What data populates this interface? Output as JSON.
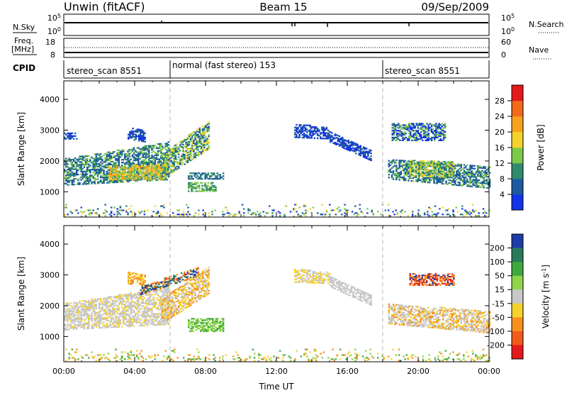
{
  "header": {
    "title_left": "Unwin (fitACF)",
    "title_center": "Beam 15",
    "title_right": "09/Sep/2009"
  },
  "nsky_panel": {
    "label": "N.Sky",
    "right_label": "N.Search",
    "ticks_left": [
      "10^5",
      "10^0"
    ],
    "ticks_right": [
      "10^5",
      "10^0"
    ]
  },
  "freq_panel": {
    "label_line1": "Freq.",
    "label_line2": "[MHz]",
    "ticks_left": [
      "18",
      "8"
    ],
    "ticks_right": [
      "60",
      "0"
    ],
    "right_label": "Nave"
  },
  "cpid": {
    "label": "CPID",
    "segments": [
      {
        "label": "stereo_scan 8551",
        "start_hour": 0
      },
      {
        "label": "normal (fast stereo) 153",
        "start_hour": 6
      },
      {
        "label": "stereo_scan 8551",
        "start_hour": 18
      }
    ]
  },
  "chart_data": [
    {
      "type": "heatmap",
      "name": "power",
      "ylabel": "Slant Range [km]",
      "ylim": [
        180,
        4600
      ],
      "yticks": [
        1000,
        2000,
        3000,
        4000
      ],
      "xlim": [
        0,
        24
      ],
      "colorbar": {
        "label": "Power [dB]",
        "ticks": [
          "4",
          "8",
          "12",
          "16",
          "20",
          "24",
          "28"
        ],
        "colors": [
          "#1432e6",
          "#1e5aa0",
          "#2f8a6e",
          "#7cc84a",
          "#f5d22d",
          "#f7a21e",
          "#f06a1c",
          "#e31a1c"
        ]
      },
      "regions": [
        {
          "t0": 0.0,
          "t1": 5.9,
          "r0_start": 1200,
          "r1_start": 2050,
          "r0_end": 1380,
          "r1_end": 2600,
          "levels": [
            1,
            1,
            2,
            3
          ]
        },
        {
          "t0": 0.0,
          "t1": 0.7,
          "r0_start": 2700,
          "r1_start": 2900,
          "r0_end": 2700,
          "r1_end": 2900,
          "levels": [
            0,
            1
          ]
        },
        {
          "t0": 3.6,
          "t1": 4.6,
          "r0_start": 2700,
          "r1_start": 3100,
          "r0_end": 2600,
          "r1_end": 3000,
          "levels": [
            0,
            1
          ]
        },
        {
          "t0": 2.5,
          "t1": 5.8,
          "r0_start": 1380,
          "r1_start": 1800,
          "r0_end": 1400,
          "r1_end": 1900,
          "levels": [
            3,
            4,
            5
          ]
        },
        {
          "t0": 5.5,
          "t1": 8.2,
          "r0_start": 1400,
          "r1_start": 2200,
          "r0_end": 2400,
          "r1_end": 3300,
          "levels": [
            1,
            2,
            3,
            4
          ]
        },
        {
          "t0": 7.0,
          "t1": 9.0,
          "r0_start": 1400,
          "r1_start": 1620,
          "r0_end": 1400,
          "r1_end": 1620,
          "levels": [
            1,
            2
          ]
        },
        {
          "t0": 7.0,
          "t1": 8.6,
          "r0_start": 1000,
          "r1_start": 1300,
          "r0_end": 1000,
          "r1_end": 1300,
          "levels": [
            2,
            3
          ]
        },
        {
          "t0": 13.0,
          "t1": 15.0,
          "r0_start": 2750,
          "r1_start": 3200,
          "r0_end": 2700,
          "r1_end": 3050,
          "levels": [
            0,
            1
          ]
        },
        {
          "t0": 15.0,
          "t1": 17.3,
          "r0_start": 2600,
          "r1_start": 2950,
          "r0_end": 2000,
          "r1_end": 2350,
          "levels": [
            0,
            1
          ]
        },
        {
          "t0": 18.3,
          "t1": 24.0,
          "r0_start": 1400,
          "r1_start": 2050,
          "r0_end": 1100,
          "r1_end": 1800,
          "levels": [
            1,
            1,
            2,
            3
          ]
        },
        {
          "t0": 19.5,
          "t1": 22.0,
          "r0_start": 1500,
          "r1_start": 2000,
          "r0_end": 1450,
          "r1_end": 1950,
          "levels": [
            2,
            3,
            4
          ]
        },
        {
          "t0": 18.5,
          "t1": 21.5,
          "r0_start": 2650,
          "r1_start": 3200,
          "r0_end": 2650,
          "r1_end": 3200,
          "levels": [
            0,
            1,
            3
          ]
        },
        {
          "t0": 0.0,
          "t1": 24.0,
          "r0_start": 200,
          "r1_start": 600,
          "r0_end": 200,
          "r1_end": 600,
          "levels": [
            0,
            1,
            2,
            3,
            4
          ]
        }
      ]
    },
    {
      "type": "heatmap",
      "name": "velocity",
      "ylabel": "Slant Range [km]",
      "xlabel": "Time UT",
      "ylim": [
        180,
        4600
      ],
      "yticks": [
        1000,
        2000,
        3000,
        4000
      ],
      "xlim": [
        0,
        24
      ],
      "xticks": [
        "00:00",
        "04:00",
        "08:00",
        "12:00",
        "16:00",
        "20:00",
        "00:00"
      ],
      "colorbar": {
        "label": "Velocity [m s^-1]",
        "ticks": [
          "200",
          "100",
          "50",
          "15",
          "-15",
          "-50",
          "-100",
          "-200"
        ],
        "colors": [
          "#1e3ca8",
          "#2a7a5a",
          "#3fa83f",
          "#8fd44a",
          "#c8c8c8",
          "#f5d22d",
          "#f7901e",
          "#f05a1c",
          "#e31a1c"
        ]
      },
      "regions": [
        {
          "t0": 0.0,
          "t1": 5.9,
          "r0_start": 1200,
          "r1_start": 2050,
          "r0_end": 1380,
          "r1_end": 2600,
          "levels": [
            4,
            4,
            4,
            5
          ]
        },
        {
          "t0": 3.6,
          "t1": 4.6,
          "r0_start": 2700,
          "r1_start": 3100,
          "r0_end": 2600,
          "r1_end": 3000,
          "levels": [
            5,
            6
          ]
        },
        {
          "t0": 4.3,
          "t1": 7.6,
          "r0_start": 2350,
          "r1_start": 2600,
          "r0_end": 2950,
          "r1_end": 3250,
          "levels": [
            0,
            1,
            6,
            7
          ]
        },
        {
          "t0": 5.5,
          "t1": 8.2,
          "r0_start": 1400,
          "r1_start": 2200,
          "r0_end": 2400,
          "r1_end": 3300,
          "levels": [
            4,
            5,
            6
          ]
        },
        {
          "t0": 7.0,
          "t1": 9.0,
          "r0_start": 1150,
          "r1_start": 1600,
          "r0_end": 1150,
          "r1_end": 1600,
          "levels": [
            2,
            3,
            3
          ]
        },
        {
          "t0": 13.0,
          "t1": 15.0,
          "r0_start": 2750,
          "r1_start": 3200,
          "r0_end": 2700,
          "r1_end": 3050,
          "levels": [
            4,
            5
          ]
        },
        {
          "t0": 15.0,
          "t1": 17.3,
          "r0_start": 2600,
          "r1_start": 2950,
          "r0_end": 2000,
          "r1_end": 2350,
          "levels": [
            4
          ]
        },
        {
          "t0": 18.3,
          "t1": 24.0,
          "r0_start": 1400,
          "r1_start": 2050,
          "r0_end": 1100,
          "r1_end": 1800,
          "levels": [
            4,
            4,
            5,
            6
          ]
        },
        {
          "t0": 19.5,
          "t1": 22.0,
          "r0_start": 2650,
          "r1_start": 3050,
          "r0_end": 2650,
          "r1_end": 3050,
          "levels": [
            6,
            7,
            8,
            0
          ]
        },
        {
          "t0": 0.0,
          "t1": 24.0,
          "r0_start": 200,
          "r1_start": 600,
          "r0_end": 200,
          "r1_end": 600,
          "levels": [
            2,
            3,
            5,
            6
          ]
        }
      ]
    }
  ]
}
